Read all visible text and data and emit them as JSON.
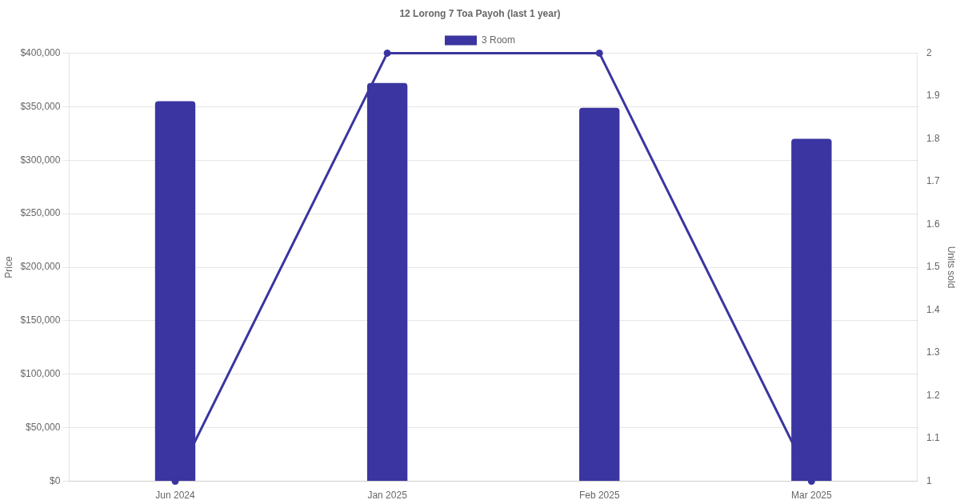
{
  "chart_data": {
    "type": "bar",
    "title": "12 Lorong 7 Toa Payoh (last 1 year)",
    "categories": [
      "Jun 2024",
      "Jan 2025",
      "Feb 2025",
      "Mar 2025"
    ],
    "series": [
      {
        "name": "3 Room",
        "color": "#3a35a0",
        "values": [
          355000,
          372000,
          349000,
          320000
        ]
      },
      {
        "type": "line",
        "axis": "y2",
        "color": "#3a35a0",
        "values": [
          1,
          2,
          2,
          1
        ]
      }
    ],
    "ylabel": "Price",
    "y2label": "Units sold",
    "ylim": [
      0,
      400000
    ],
    "yticks": [
      {
        "value": 0,
        "label": "$0"
      },
      {
        "value": 50000,
        "label": "$50,000"
      },
      {
        "value": 100000,
        "label": "$100,000"
      },
      {
        "value": 150000,
        "label": "$150,000"
      },
      {
        "value": 200000,
        "label": "$200,000"
      },
      {
        "value": 250000,
        "label": "$250,000"
      },
      {
        "value": 300000,
        "label": "$300,000"
      },
      {
        "value": 350000,
        "label": "$350,000"
      },
      {
        "value": 400000,
        "label": "$400,000"
      }
    ],
    "y2lim": [
      1,
      2
    ],
    "y2ticks": [
      1,
      1.1,
      1.2,
      1.3,
      1.4,
      1.5,
      1.6,
      1.7,
      1.8,
      1.9,
      2
    ],
    "grid": "y",
    "legend": "top",
    "marker": "circle",
    "line_style": "solid"
  }
}
